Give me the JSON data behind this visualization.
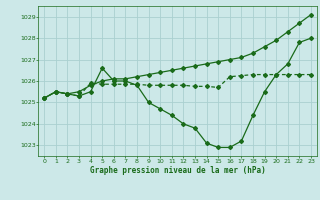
{
  "background_color": "#cce8e8",
  "grid_color": "#aad0d0",
  "line_color": "#1a6b1a",
  "xlabel": "Graphe pression niveau de la mer (hPa)",
  "xlim": [
    -0.5,
    23.5
  ],
  "ylim": [
    1022.5,
    1029.5
  ],
  "yticks": [
    1023,
    1024,
    1025,
    1026,
    1027,
    1028,
    1029
  ],
  "xticks": [
    0,
    1,
    2,
    3,
    4,
    5,
    6,
    7,
    8,
    9,
    10,
    11,
    12,
    13,
    14,
    15,
    16,
    17,
    18,
    19,
    20,
    21,
    22,
    23
  ],
  "series": [
    {
      "x": [
        0,
        1,
        2,
        3,
        4,
        5,
        6,
        7,
        8,
        9,
        10,
        11,
        12,
        13,
        14,
        15,
        16,
        17,
        18,
        19,
        20,
        21,
        22,
        23
      ],
      "y": [
        1025.2,
        1025.5,
        1025.4,
        1025.3,
        1025.5,
        1026.6,
        1026.0,
        1026.0,
        1025.8,
        1025.0,
        1024.7,
        1024.4,
        1024.0,
        1023.8,
        1023.1,
        1022.9,
        1022.9,
        1023.2,
        1024.4,
        1025.5,
        1026.3,
        1026.8,
        1027.8,
        1028.0
      ],
      "linestyle": "-",
      "marker": "D",
      "markersize": 2.0,
      "linewidth": 0.9,
      "zorder": 3
    },
    {
      "x": [
        0,
        1,
        2,
        3,
        4,
        5,
        6,
        7,
        8,
        9,
        10,
        11,
        12,
        13,
        14,
        15,
        16,
        17,
        18,
        19,
        20,
        21,
        22,
        23
      ],
      "y": [
        1025.2,
        1025.5,
        1025.4,
        1025.3,
        1025.9,
        1025.85,
        1025.85,
        1025.85,
        1025.85,
        1025.8,
        1025.8,
        1025.8,
        1025.8,
        1025.75,
        1025.75,
        1025.7,
        1026.2,
        1026.25,
        1026.3,
        1026.3,
        1026.3,
        1026.3,
        1026.3,
        1026.3
      ],
      "linestyle": "--",
      "marker": "D",
      "markersize": 2.0,
      "linewidth": 0.9,
      "zorder": 2
    },
    {
      "x": [
        0,
        1,
        2,
        3,
        4,
        5,
        6,
        7,
        8,
        9,
        10,
        11,
        12,
        13,
        14,
        15,
        16,
        17,
        18,
        19,
        20,
        21,
        22,
        23
      ],
      "y": [
        1025.2,
        1025.5,
        1025.4,
        1025.5,
        1025.8,
        1026.0,
        1026.1,
        1026.1,
        1026.2,
        1026.3,
        1026.4,
        1026.5,
        1026.6,
        1026.7,
        1026.8,
        1026.9,
        1027.0,
        1027.1,
        1027.3,
        1027.6,
        1027.9,
        1028.3,
        1028.7,
        1029.1
      ],
      "linestyle": "-",
      "marker": "D",
      "markersize": 2.0,
      "linewidth": 0.9,
      "zorder": 2
    }
  ]
}
